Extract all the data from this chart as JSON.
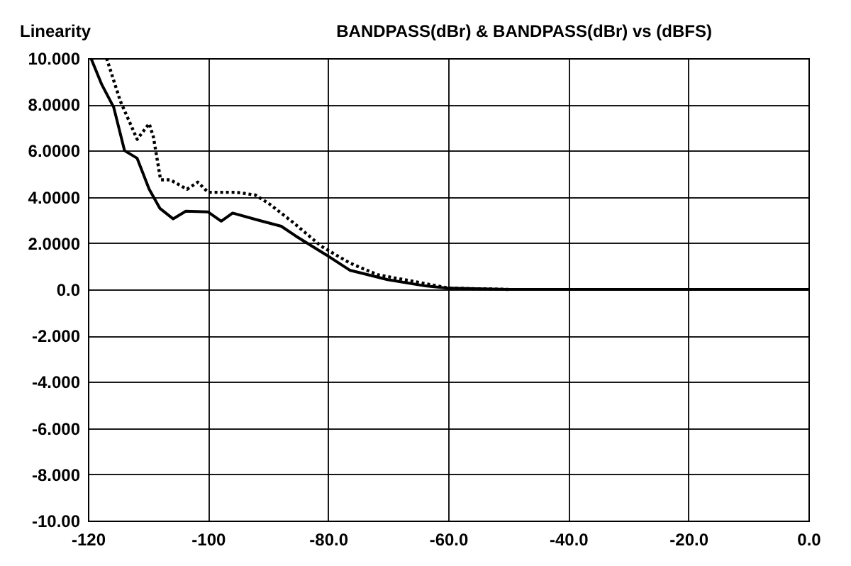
{
  "chart_data": {
    "type": "line",
    "title": "Linearity",
    "annotations": [
      "BANDPASS(dBr) & BANDPASS(dBr) vs    (dBFS)"
    ],
    "xlim": [
      -120,
      0
    ],
    "xticks": [
      -120,
      {
        "value": -100,
        "label": "-100"
      },
      {
        "value": -80,
        "label": "-80.0"
      },
      {
        "value": -60,
        "label": "-60.0"
      },
      {
        "value": -40,
        "label": "-40.0"
      },
      {
        "value": -20,
        "label": "-20.0"
      },
      {
        "value": 0,
        "label": "0.0"
      }
    ],
    "ylim": [
      -10,
      10
    ],
    "yticks": [
      {
        "value": -10,
        "label": "-10.00"
      },
      {
        "value": -8,
        "label": "-8.000"
      },
      {
        "value": -6,
        "label": "-6.000"
      },
      {
        "value": -4,
        "label": "-4.000"
      },
      {
        "value": -2,
        "label": "-2.000"
      },
      {
        "value": 0,
        "label": "0.0"
      },
      {
        "value": 2,
        "label": "2.0000"
      },
      {
        "value": 4,
        "label": "4.0000"
      },
      {
        "value": 6,
        "label": "6.0000"
      },
      {
        "value": 8,
        "label": "8.0000"
      },
      {
        "value": 10,
        "label": "10.000"
      }
    ],
    "grid": true,
    "marker": "none",
    "series": [
      {
        "color": "#000000",
        "line_style": "solid",
        "x": [
          -119.5,
          -117.7,
          -115.7,
          -113.9,
          -111.8,
          -109.8,
          -108,
          -105.8,
          -103.7,
          -100,
          -97.8,
          -95.9,
          -91.7,
          -87.8,
          -85.4,
          -80.3,
          -76.4,
          -70.1,
          -63.8,
          -60,
          -50,
          -40,
          -20,
          0
        ],
        "values": [
          10,
          8.86,
          7.87,
          6.0,
          5.67,
          4.33,
          3.5,
          3.05,
          3.38,
          3.35,
          2.95,
          3.3,
          3.0,
          2.73,
          2.31,
          1.49,
          0.83,
          0.42,
          0.15,
          0.05,
          0,
          0,
          0,
          0
        ]
      },
      {
        "color": "#000000",
        "line_style": "dotted",
        "x": [
          -116.9,
          -114.6,
          -111.8,
          -109.8,
          -109.1,
          -107.9,
          -106.3,
          -103.5,
          -101.7,
          -100,
          -95.3,
          -92.1,
          -89.8,
          -85.8,
          -81.1,
          -76.4,
          -71.7,
          -63.8,
          -59.8,
          -50
        ],
        "values": [
          10,
          8.14,
          6.49,
          7.17,
          6.6,
          4.74,
          4.74,
          4.33,
          4.64,
          4.2,
          4.2,
          4.08,
          3.7,
          2.89,
          1.86,
          1.14,
          0.63,
          0.25,
          0.05,
          0
        ]
      }
    ]
  }
}
